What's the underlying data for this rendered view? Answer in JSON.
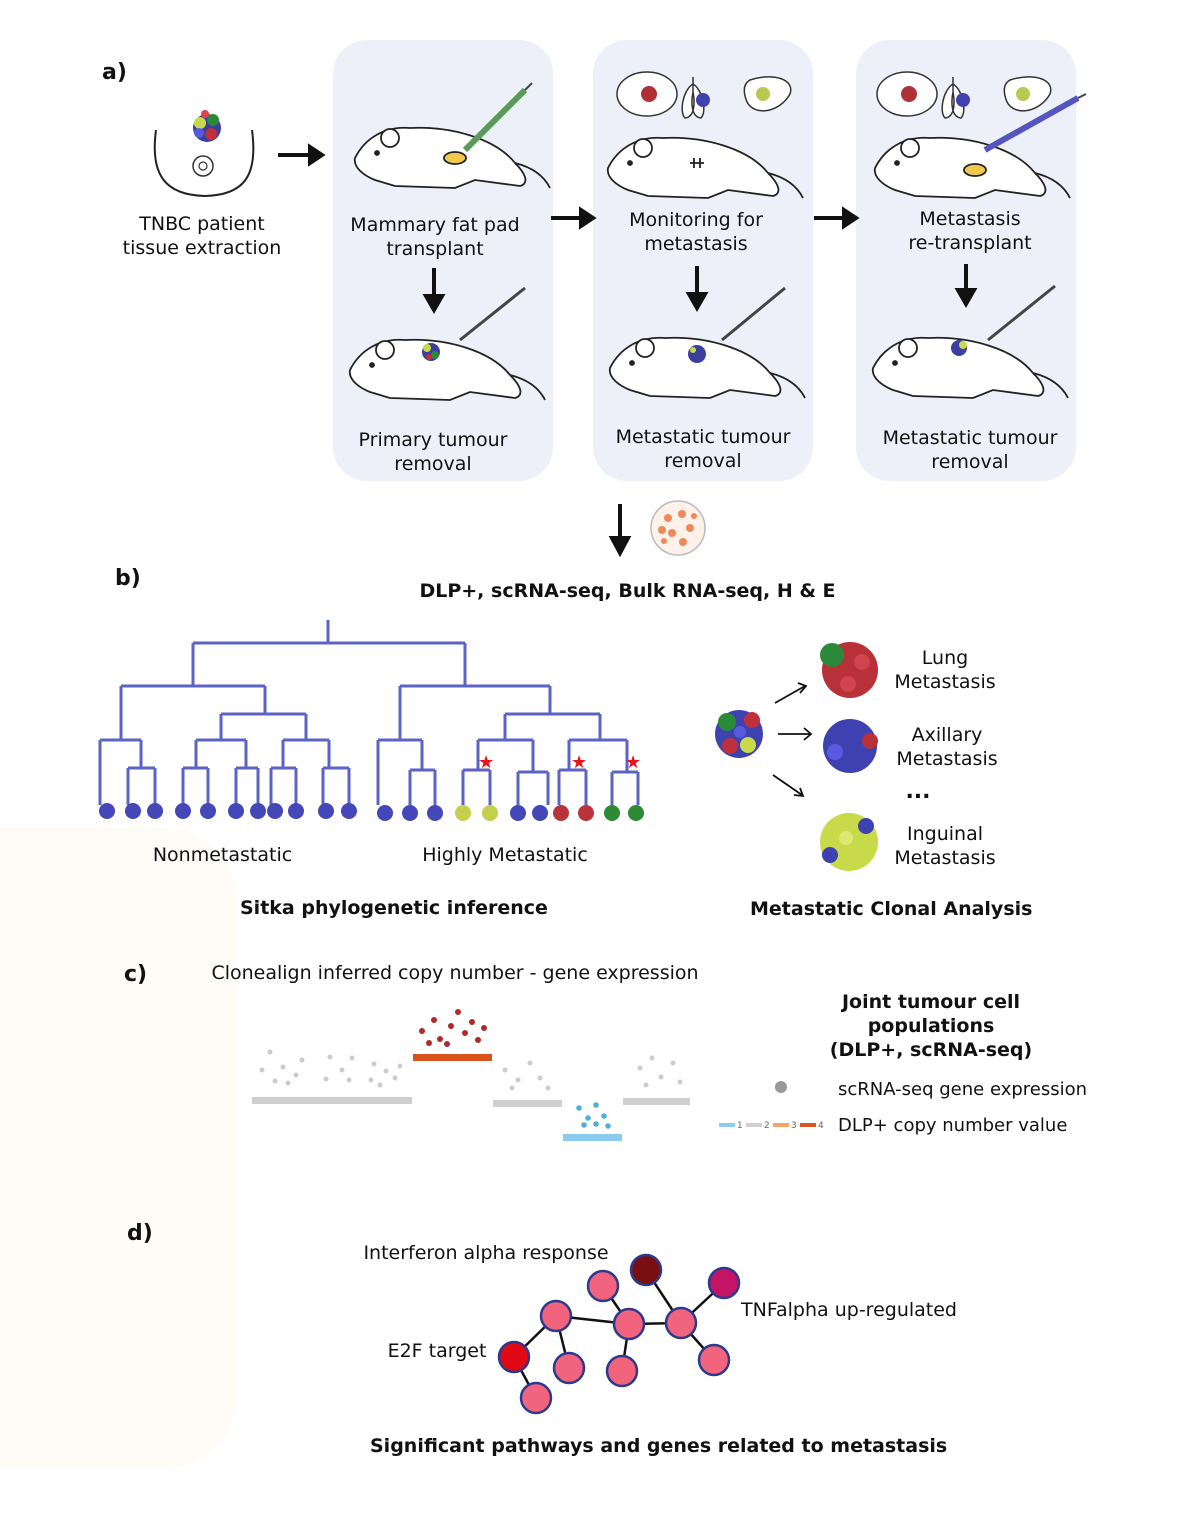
{
  "panels": {
    "a": {
      "label": "a)",
      "patient": "TNBC patient\ntissue extraction",
      "steps": [
        {
          "top": "Mammary fat pad\ntransplant",
          "bottom": "Primary tumour\nremoval"
        },
        {
          "top": "Monitoring for\nmetastasis",
          "bottom": "Metastatic tumour\nremoval"
        },
        {
          "top": "Metastasis\nre-transplant",
          "bottom": "Metastatic tumour\nremoval"
        }
      ]
    },
    "b": {
      "label": "b)",
      "assays": "DLP+, scRNA-seq, Bulk RNA-seq, H & E",
      "tree_left": "Nonmetastatic",
      "tree_right": "Highly Metastatic",
      "tree_title": "Sitka phylogenetic inference",
      "metastases": [
        "Lung\nMetastasis",
        "Axillary\nMetastasis",
        "Inguinal\nMetastasis"
      ],
      "ellipsis": "...",
      "clonal_title": "Metastatic Clonal Analysis"
    },
    "c": {
      "label": "c)",
      "title": "Clonealign inferred copy number - gene expression",
      "joint": "Joint tumour cell populations\n(DLP+, scRNA-seq)",
      "legend_expression": "scRNA-seq gene expression",
      "legend_copy": "DLP+ copy number value",
      "copy_values": [
        "1",
        "2",
        "3",
        "4"
      ]
    },
    "d": {
      "label": "d)",
      "pathways": [
        "Interferon alpha response",
        "TNFalpha up-regulated",
        "E2F target"
      ],
      "title": "Significant pathways and genes related to metastasis"
    }
  },
  "colors": {
    "box": "#eef0f9",
    "tree": "#5b63c4",
    "star": "#e8141c",
    "cn1": "#8ccbf0",
    "cn2": "#cfcfcf",
    "cn3": "#f5a265",
    "cn4": "#d9541c",
    "node": "#f2637e",
    "node_edge": "#2b3a8c"
  }
}
